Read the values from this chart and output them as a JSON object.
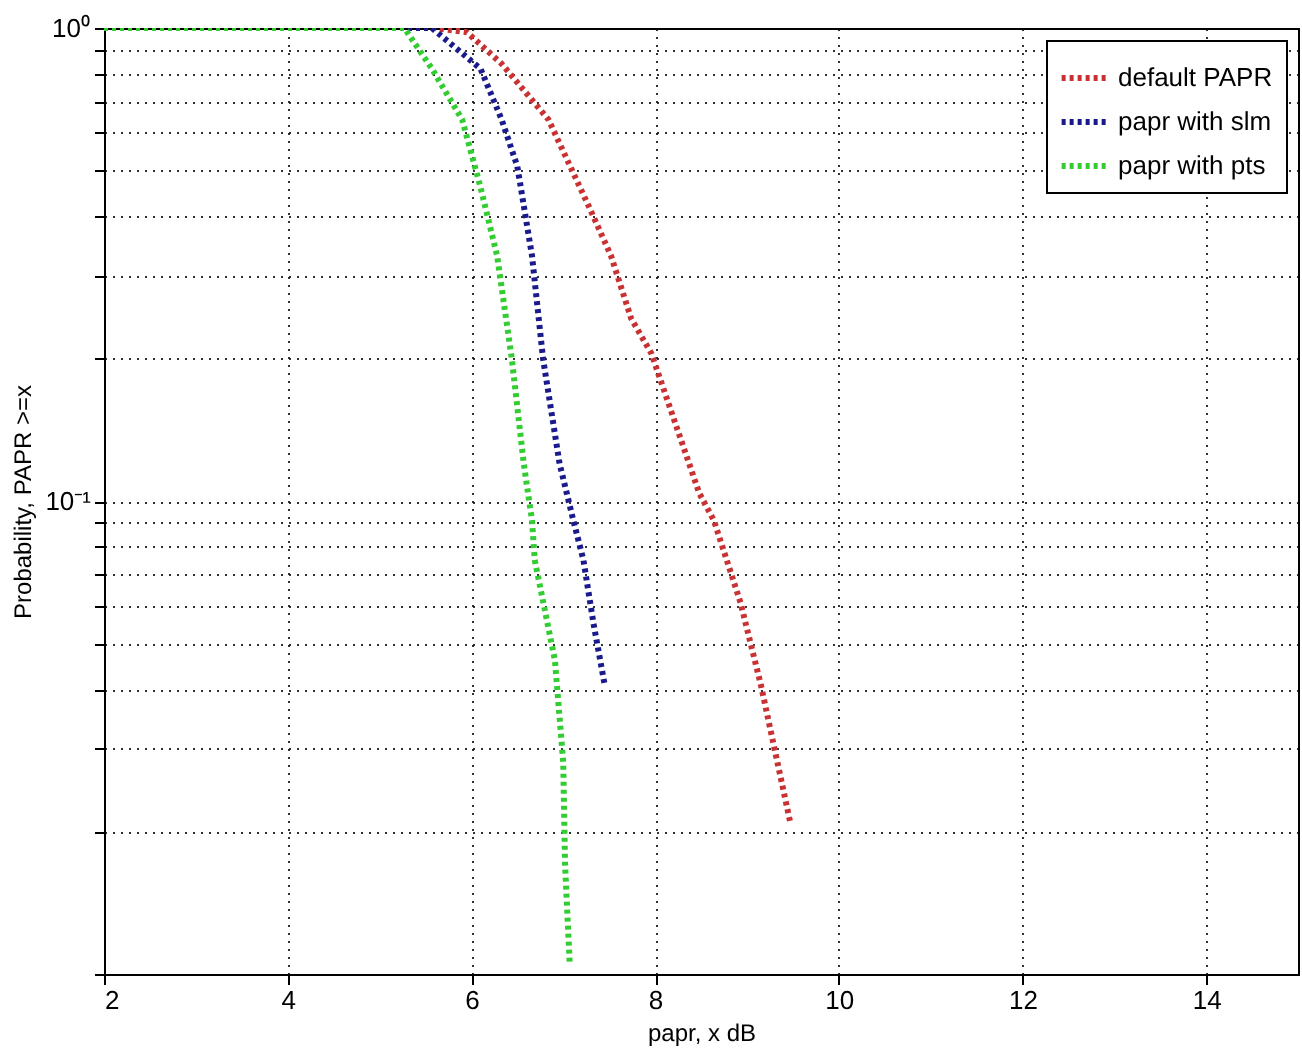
{
  "chart_data": {
    "type": "line",
    "xlabel": "papr, x dB",
    "ylabel": "Probability, PAPR >=x",
    "xlim": [
      2,
      15
    ],
    "xticks": [
      2,
      4,
      6,
      8,
      10,
      12,
      14
    ],
    "ylim": [
      0.01,
      1
    ],
    "log": "y",
    "yticks": [
      {
        "value": 0.01,
        "label": null
      },
      {
        "value": 0.02,
        "label": null
      },
      {
        "value": 0.03,
        "label": null
      },
      {
        "value": 0.04,
        "label": null
      },
      {
        "value": 0.05,
        "label": null
      },
      {
        "value": 0.06,
        "label": null
      },
      {
        "value": 0.07,
        "label": null
      },
      {
        "value": 0.08,
        "label": null
      },
      {
        "value": 0.09,
        "label": null
      },
      {
        "value": 0.1,
        "label": "10⁻¹"
      },
      {
        "value": 0.2,
        "label": null
      },
      {
        "value": 0.3,
        "label": null
      },
      {
        "value": 0.4,
        "label": null
      },
      {
        "value": 0.5,
        "label": null
      },
      {
        "value": 0.6,
        "label": null
      },
      {
        "value": 0.7,
        "label": null
      },
      {
        "value": 0.8,
        "label": null
      },
      {
        "value": 0.9,
        "label": null
      },
      {
        "value": 1,
        "label": "10⁰"
      }
    ],
    "grid": true,
    "legend": "top right",
    "line_style": "dotted",
    "marker": "none",
    "series": [
      {
        "name": "default PAPR",
        "color": "#c83232",
        "x": [
          2,
          5.6,
          5.95,
          6.33,
          6.84,
          7.29,
          7.52,
          7.74,
          7.96,
          8.48,
          8.64,
          8.93,
          9.15,
          9.47
        ],
        "values": [
          1,
          1,
          0.98,
          0.84,
          0.64,
          0.415,
          0.33,
          0.243,
          0.205,
          0.104,
          0.091,
          0.061,
          0.041,
          0.021
        ]
      },
      {
        "name": "papr with slm",
        "color": "#1a1a8c",
        "x": [
          2,
          5.57,
          6.1,
          6.33,
          6.5,
          6.66,
          6.78,
          6.96,
          7.11,
          7.22,
          7.33,
          7.45
        ],
        "values": [
          1,
          1,
          0.82,
          0.64,
          0.51,
          0.33,
          0.2,
          0.12,
          0.091,
          0.075,
          0.055,
          0.041
        ]
      },
      {
        "name": "papr with pts",
        "color": "#33cc33",
        "x": [
          2,
          5.27,
          5.57,
          5.9,
          6.1,
          6.28,
          6.44,
          6.57,
          6.66,
          6.69,
          6.91,
          7.0,
          7.02,
          7.07
        ],
        "values": [
          1,
          1,
          0.82,
          0.64,
          0.46,
          0.33,
          0.2,
          0.12,
          0.091,
          0.075,
          0.046,
          0.028,
          0.017,
          0.0106
        ]
      }
    ]
  }
}
